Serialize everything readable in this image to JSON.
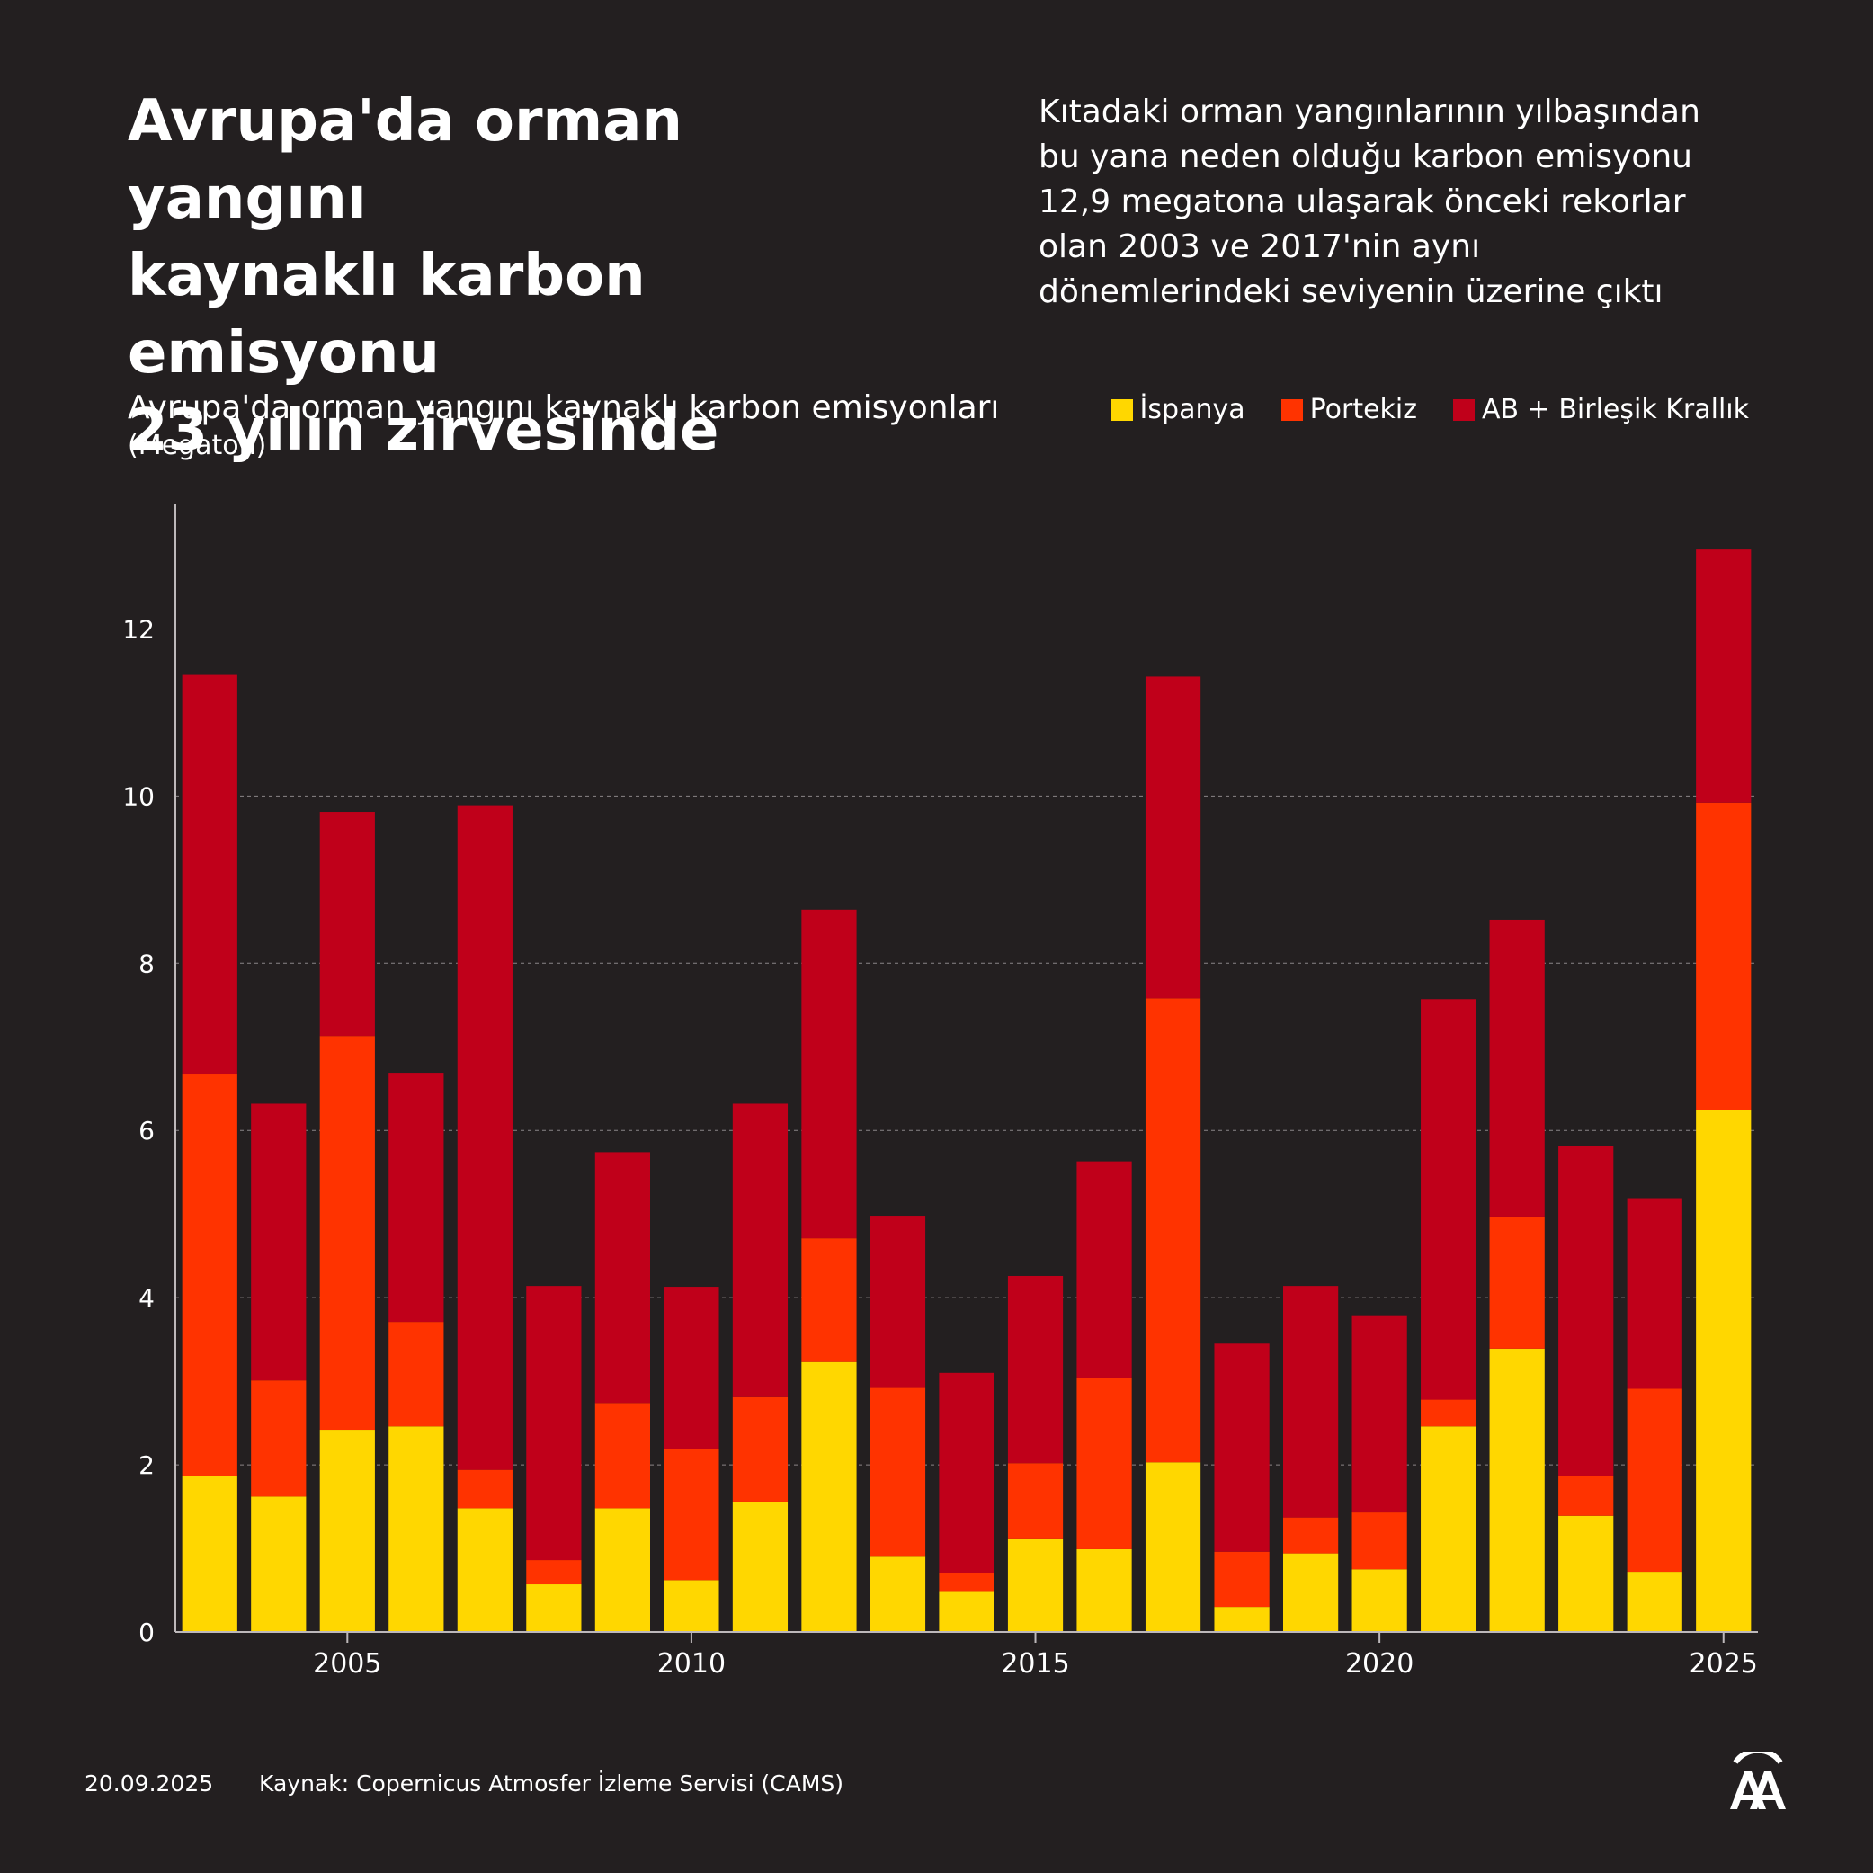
{
  "header": {
    "title_lines": [
      "Avrupa'da orman yangını",
      "kaynaklı karbon emisyonu",
      "23 yılın zirvesinde"
    ],
    "subtitle_lines": [
      "Kıtadaki orman yangınlarının yılbaşından",
      "bu yana neden olduğu karbon emisyonu",
      "12,9 megatona ulaşarak önceki rekorlar",
      "olan 2003 ve 2017'nin aynı",
      "dönemlerindeki seviyenin üzerine çıktı"
    ]
  },
  "chart_data": {
    "type": "bar",
    "stacked": true,
    "title": "Avrupa'da orman yangını kaynaklı karbon emisyonları",
    "unit": "(Megaton)",
    "categories": [
      2003,
      2004,
      2005,
      2006,
      2007,
      2008,
      2009,
      2010,
      2011,
      2012,
      2013,
      2014,
      2015,
      2016,
      2017,
      2018,
      2019,
      2020,
      2021,
      2022,
      2023,
      2024,
      2025
    ],
    "series": [
      {
        "name": "İspanya",
        "color": "#ffd700",
        "values": [
          1.87,
          1.62,
          2.42,
          2.46,
          1.48,
          0.57,
          1.48,
          0.62,
          1.56,
          3.23,
          0.9,
          0.49,
          1.12,
          0.99,
          2.03,
          0.3,
          0.94,
          0.75,
          2.46,
          3.39,
          1.39,
          0.72,
          6.24
        ]
      },
      {
        "name": "Portekiz",
        "color": "#ff3300",
        "values": [
          4.81,
          1.39,
          4.71,
          1.25,
          0.46,
          0.29,
          1.26,
          1.57,
          1.25,
          1.48,
          2.02,
          0.22,
          0.9,
          2.05,
          5.55,
          0.66,
          0.43,
          0.68,
          0.32,
          1.58,
          0.48,
          2.19,
          3.68
        ]
      },
      {
        "name": "AB + Birleşik Krallık",
        "color": "#c0001a",
        "values": [
          4.77,
          3.31,
          2.68,
          2.98,
          7.95,
          3.28,
          3.0,
          1.94,
          3.51,
          3.93,
          2.06,
          2.39,
          2.24,
          2.59,
          3.85,
          2.49,
          2.77,
          2.36,
          4.79,
          3.55,
          3.94,
          2.28,
          3.03
        ]
      }
    ],
    "xticks": [
      2005,
      2010,
      2015,
      2020,
      2025
    ],
    "yticks": [
      0,
      2,
      4,
      6,
      8,
      10,
      12
    ],
    "ylim": [
      0,
      13.5
    ],
    "grid": "dashed horizontal",
    "legend_position": "top-right"
  },
  "footer": {
    "date": "20.09.2025",
    "source": "Kaynak: Copernicus Atmosfer İzleme Servisi (CAMS)"
  },
  "logo": {
    "text": "AA",
    "icon": "aa-logo-icon"
  }
}
